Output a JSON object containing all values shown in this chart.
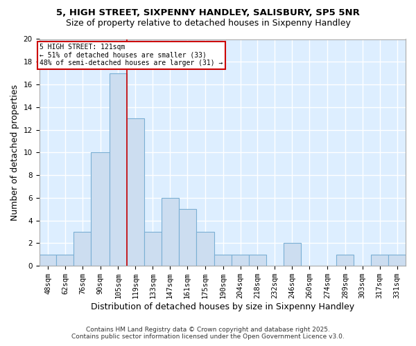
{
  "title1": "5, HIGH STREET, SIXPENNY HANDLEY, SALISBURY, SP5 5NR",
  "title2": "Size of property relative to detached houses in Sixpenny Handley",
  "xlabel": "Distribution of detached houses by size in Sixpenny Handley",
  "ylabel": "Number of detached properties",
  "bin_edges": [
    48,
    62,
    76,
    90,
    105,
    119,
    133,
    147,
    161,
    175,
    190,
    204,
    218,
    232,
    246,
    260,
    274,
    289,
    303,
    317,
    331,
    345
  ],
  "bin_labels": [
    "48sqm",
    "62sqm",
    "76sqm",
    "90sqm",
    "105sqm",
    "119sqm",
    "133sqm",
    "147sqm",
    "161sqm",
    "175sqm",
    "190sqm",
    "204sqm",
    "218sqm",
    "232sqm",
    "246sqm",
    "260sqm",
    "274sqm",
    "289sqm",
    "303sqm",
    "317sqm",
    "331sqm"
  ],
  "counts": [
    1,
    1,
    3,
    10,
    17,
    13,
    3,
    6,
    5,
    3,
    1,
    1,
    1,
    0,
    2,
    0,
    0,
    1,
    0,
    1,
    1
  ],
  "bar_color": "#ccddf0",
  "bar_edge_color": "#7aafd4",
  "vline_x_bin": 5,
  "vline_color": "#cc0000",
  "annotation_line1": "5 HIGH STREET: 121sqm",
  "annotation_line2": "← 51% of detached houses are smaller (33)",
  "annotation_line3": "48% of semi-detached houses are larger (31) →",
  "annotation_box_color": "#ffffff",
  "annotation_box_edge": "#cc0000",
  "ylim": [
    0,
    20
  ],
  "yticks": [
    0,
    2,
    4,
    6,
    8,
    10,
    12,
    14,
    16,
    18,
    20
  ],
  "fig_bg_color": "#ffffff",
  "plot_bg_color": "#ddeeff",
  "grid_color": "#ffffff",
  "footer1": "Contains HM Land Registry data © Crown copyright and database right 2025.",
  "footer2": "Contains public sector information licensed under the Open Government Licence v3.0.",
  "title1_fontsize": 9.5,
  "title2_fontsize": 9,
  "ylabel_fontsize": 9,
  "xlabel_fontsize": 9,
  "tick_fontsize": 7.5,
  "footer_fontsize": 6.5
}
